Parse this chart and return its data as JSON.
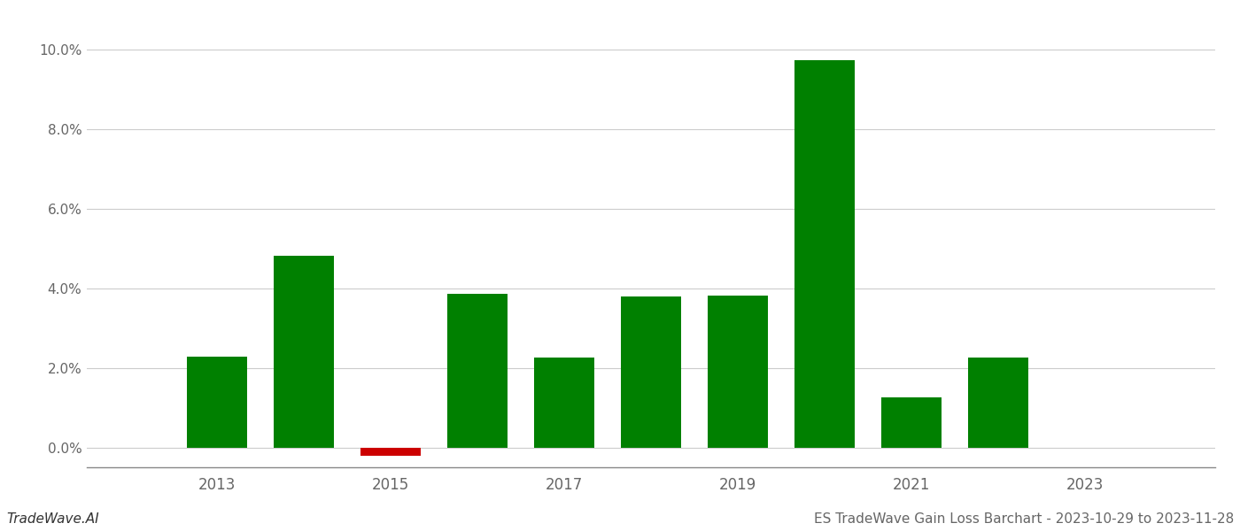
{
  "years": [
    2013,
    2014,
    2015,
    2016,
    2017,
    2018,
    2019,
    2020,
    2021,
    2022
  ],
  "values": [
    0.0228,
    0.0482,
    -0.002,
    0.0385,
    0.0225,
    0.0378,
    0.0382,
    0.0972,
    0.0125,
    0.0225
  ],
  "colors": [
    "#008000",
    "#008000",
    "#cc0000",
    "#008000",
    "#008000",
    "#008000",
    "#008000",
    "#008000",
    "#008000",
    "#008000"
  ],
  "title": "ES TradeWave Gain Loss Barchart - 2023-10-29 to 2023-11-28",
  "watermark": "TradeWave.AI",
  "ylim_min": -0.005,
  "ylim_max": 0.103,
  "ytick_values": [
    0.0,
    0.02,
    0.04,
    0.06,
    0.08,
    0.1
  ],
  "xtick_labels": [
    2013,
    2015,
    2017,
    2019,
    2021,
    2023
  ],
  "background_color": "#ffffff",
  "bar_width": 0.7,
  "xlim_min": 2011.5,
  "xlim_max": 2024.5
}
